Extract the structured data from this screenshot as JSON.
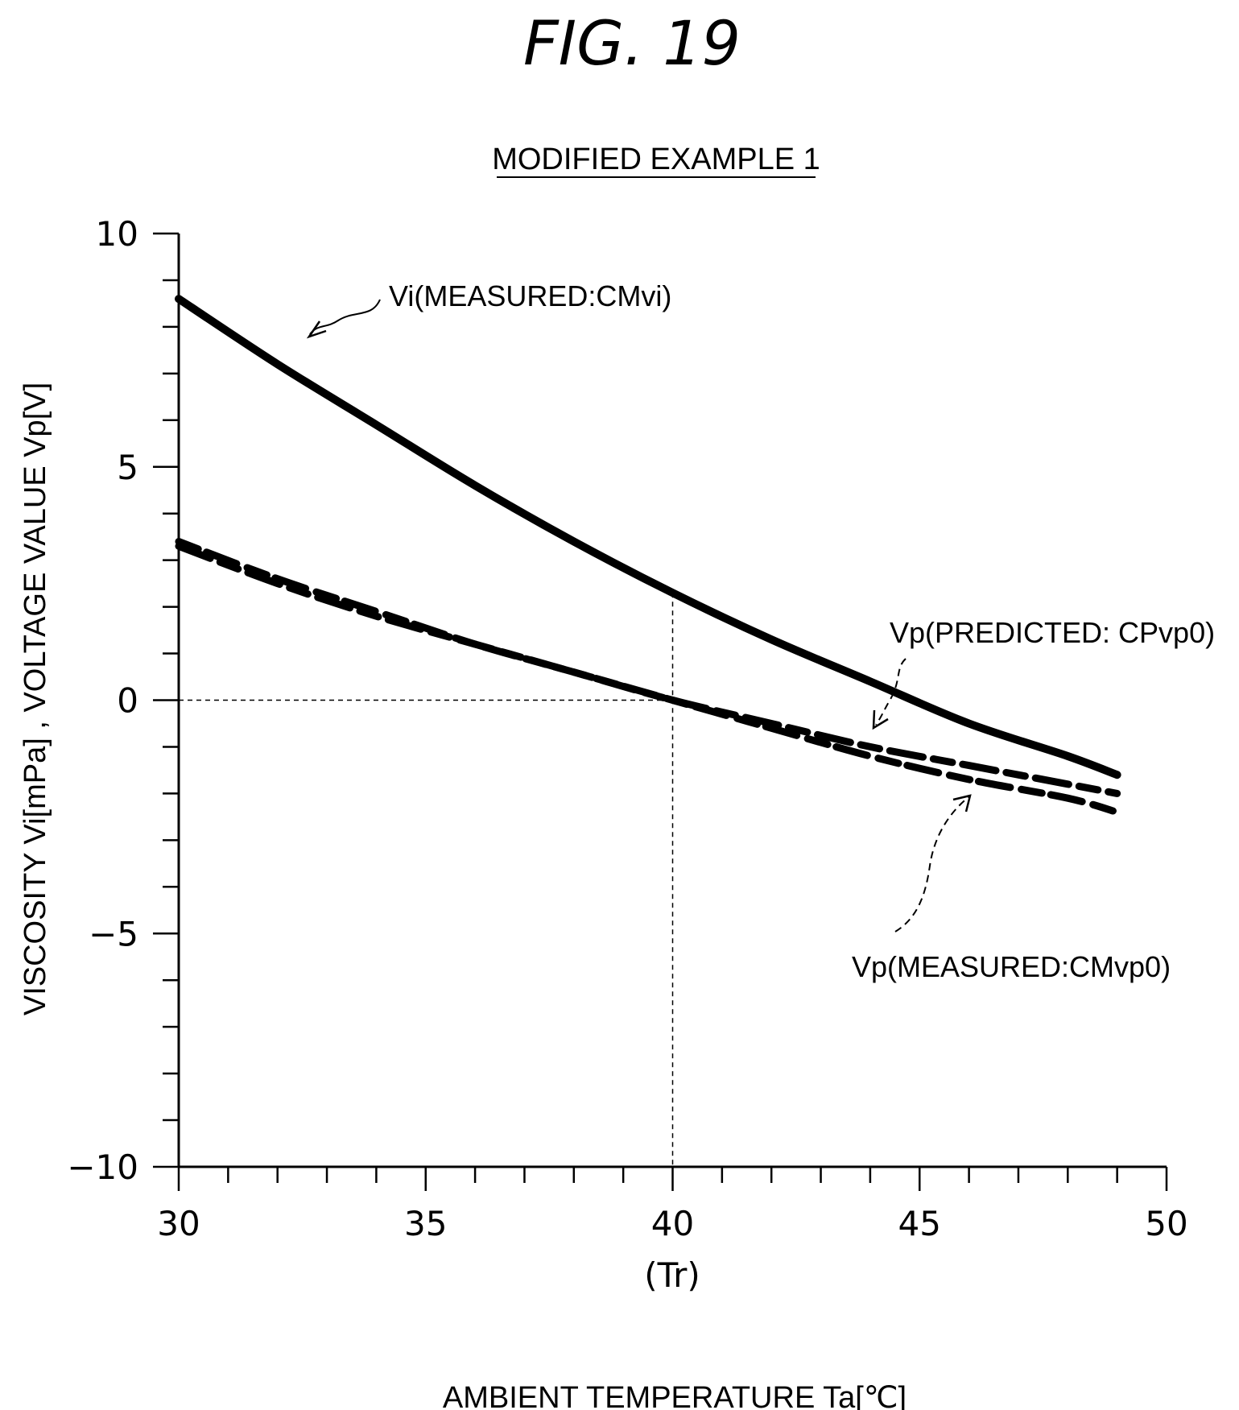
{
  "figure_label": "FIG. 19",
  "chart_data": {
    "type": "line",
    "title": "MODIFIED EXAMPLE 1",
    "xlabel": "AMBIENT TEMPERATURE Ta[℃]",
    "ylabel": "VISCOSITY Vi[mPa] , VOLTAGE VALUE Vp[V]",
    "xlim": [
      30,
      50
    ],
    "ylim": [
      -10,
      10
    ],
    "x_major_ticks": [
      30,
      35,
      40,
      45,
      50
    ],
    "x_tick_labels": [
      "30",
      "35",
      "40",
      "45",
      "50"
    ],
    "x_minor_step": 1,
    "y_major_ticks": [
      10,
      5,
      0,
      -5,
      -10
    ],
    "y_tick_labels": [
      "10",
      "5",
      "0",
      "−5",
      "−10"
    ],
    "y_minor_step": 1,
    "reference_x": 40,
    "reference_x_label": "(Tr)",
    "reference_y": 0,
    "grid": false,
    "series": [
      {
        "name": "Vi(MEASURED:CMvi)",
        "style": "solid",
        "x": [
          30,
          32,
          34,
          36,
          38,
          40,
          42,
          44,
          46,
          48,
          49
        ],
        "y": [
          8.6,
          7.2,
          5.9,
          4.6,
          3.4,
          2.3,
          1.3,
          0.4,
          -0.5,
          -1.2,
          -1.6
        ]
      },
      {
        "name": "Vp(PREDICTED: CPvp0)",
        "style": "dashed",
        "x": [
          30,
          32,
          34,
          36,
          38,
          40,
          42,
          44,
          46,
          48,
          49
        ],
        "y": [
          3.3,
          2.5,
          1.8,
          1.2,
          0.6,
          0.0,
          -0.5,
          -1.0,
          -1.4,
          -1.8,
          -2.0
        ]
      },
      {
        "name": "Vp(MEASURED:CMvp0)",
        "style": "dashed",
        "x": [
          30,
          32,
          34,
          36,
          38,
          40,
          42,
          44,
          46,
          48,
          49
        ],
        "y": [
          3.4,
          2.6,
          1.9,
          1.2,
          0.6,
          0.0,
          -0.6,
          -1.2,
          -1.7,
          -2.1,
          -2.4
        ]
      }
    ]
  }
}
